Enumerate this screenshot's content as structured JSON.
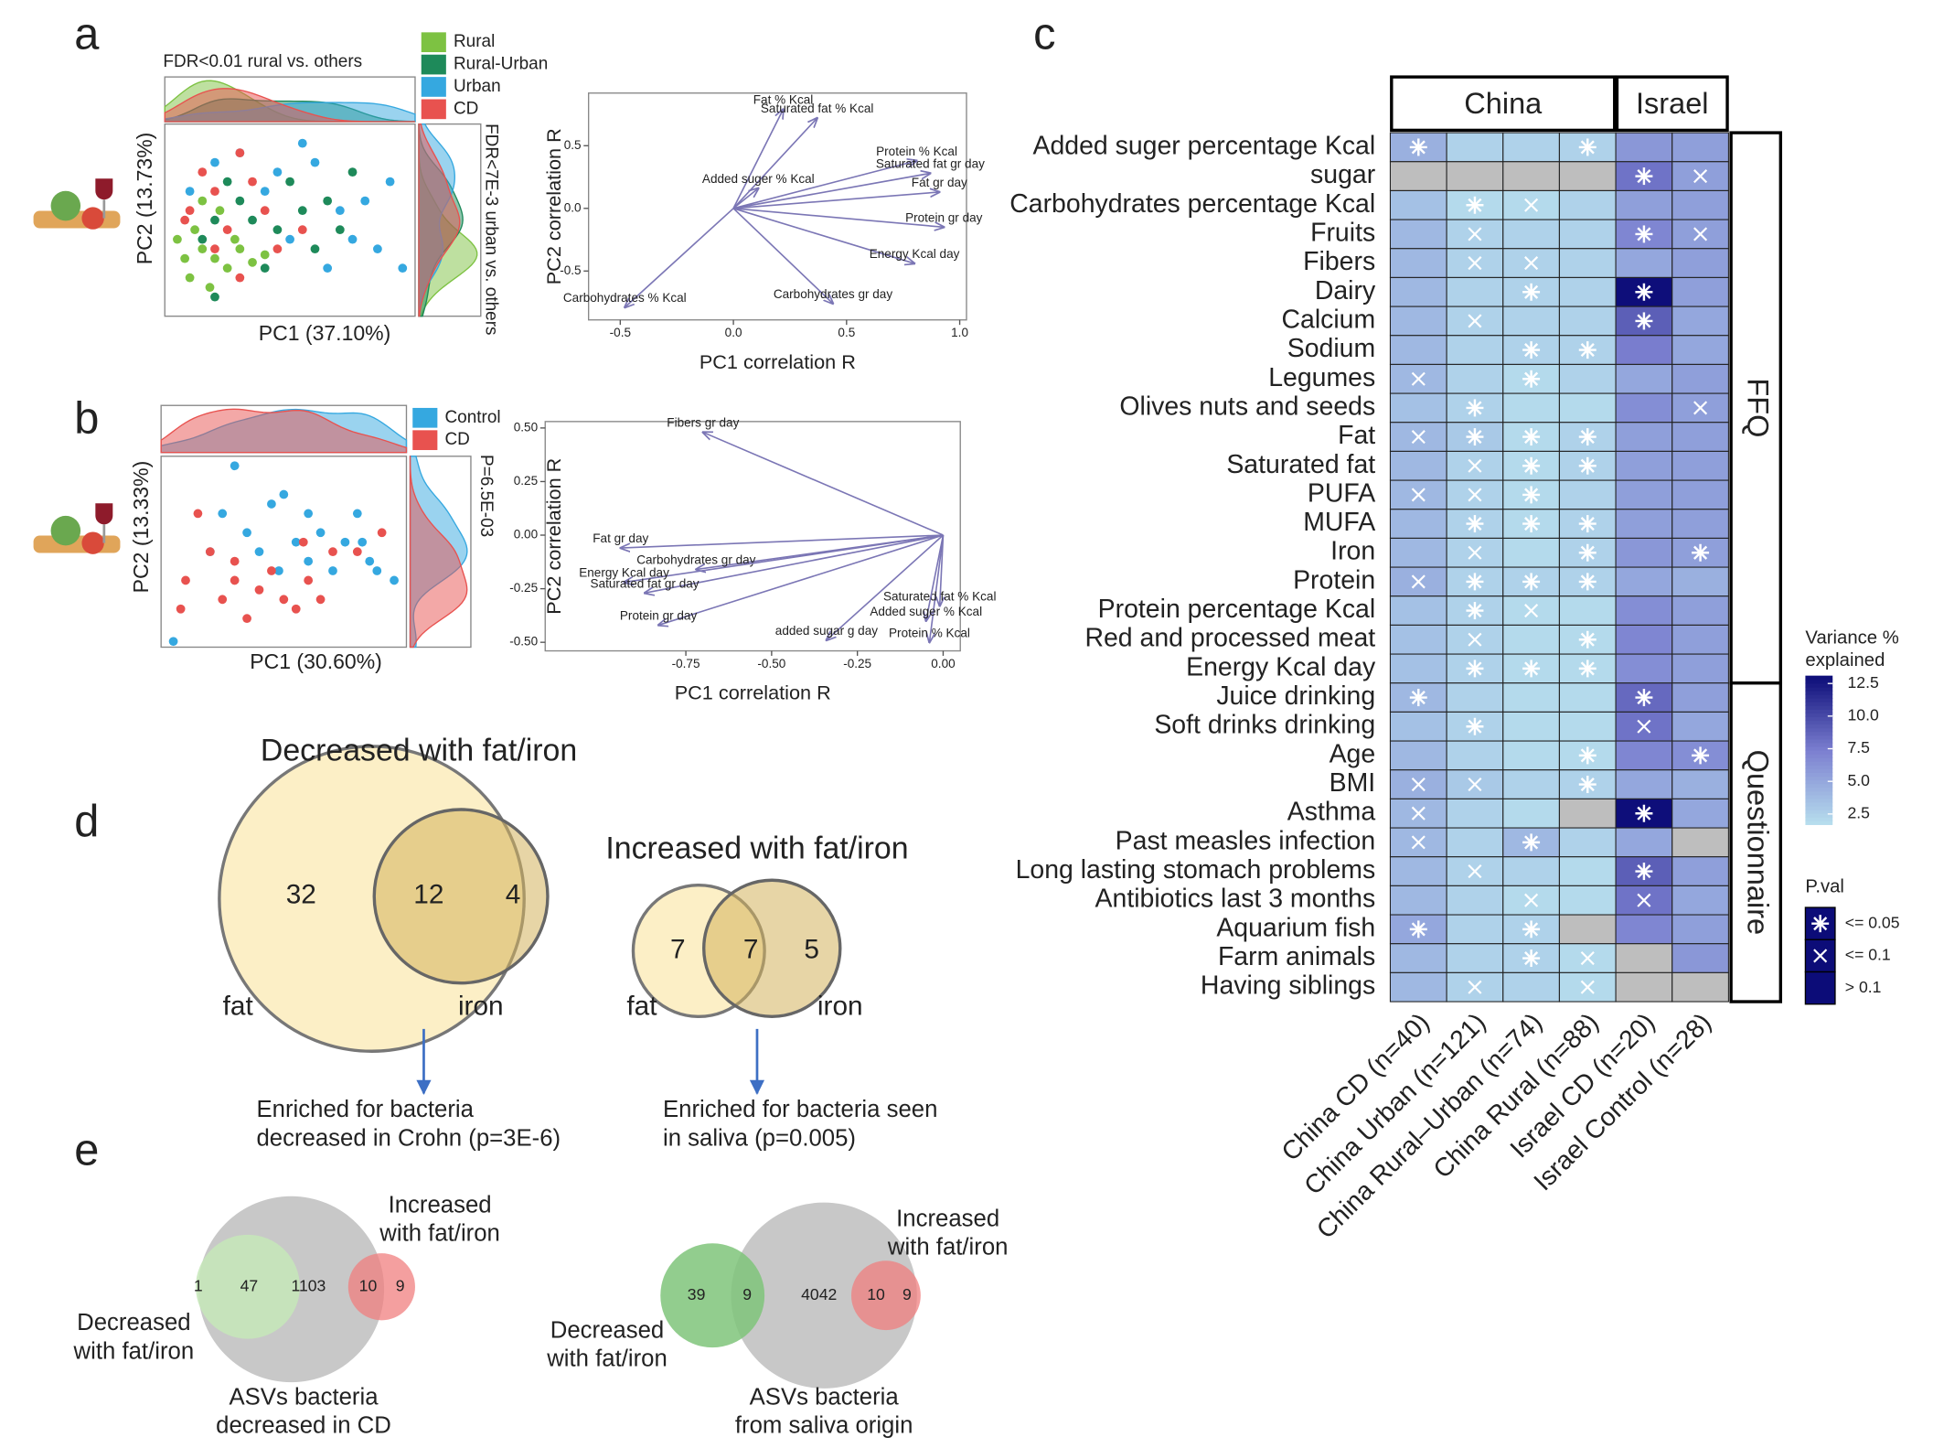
{
  "panel_labels": [
    "a",
    "b",
    "c",
    "d",
    "e"
  ],
  "chart_data": [
    {
      "type": "scatter",
      "xlabel": "PC1 (37.10%)",
      "ylabel": "PC2 (13.73%)",
      "top_annotation": "FDR<0.01 rural vs. others",
      "side_annotation": "FDR<7E-3 urban vs. others",
      "xlim": [
        0,
        1
      ],
      "ylim": [
        0,
        1
      ],
      "series": [
        {
          "name": "Rural",
          "color": "#7dc242",
          "x": [
            0.15,
            0.1,
            0.2,
            0.25,
            0.12,
            0.3,
            0.18,
            0.22,
            0.08,
            0.35,
            0.28,
            0.15,
            0.05,
            0.4
          ],
          "values": [
            0.35,
            0.2,
            0.3,
            0.25,
            0.45,
            0.35,
            0.15,
            0.55,
            0.3,
            0.28,
            0.4,
            0.6,
            0.4,
            0.32
          ]
        },
        {
          "name": "Rural-Urban",
          "color": "#1e8a5a",
          "x": [
            0.2,
            0.3,
            0.45,
            0.55,
            0.65,
            0.25,
            0.4,
            0.6,
            0.5,
            0.15,
            0.35,
            0.7,
            0.2,
            0.75
          ],
          "values": [
            0.5,
            0.6,
            0.45,
            0.55,
            0.6,
            0.7,
            0.25,
            0.35,
            0.7,
            0.4,
            0.5,
            0.45,
            0.1,
            0.75
          ]
        },
        {
          "name": "Urban",
          "color": "#35a8e0",
          "x": [
            0.3,
            0.45,
            0.6,
            0.8,
            0.85,
            0.95,
            0.7,
            0.2,
            0.55,
            0.9,
            0.4,
            0.65,
            0.75,
            0.1,
            0.5
          ],
          "values": [
            0.85,
            0.75,
            0.8,
            0.6,
            0.35,
            0.25,
            0.55,
            0.8,
            0.9,
            0.7,
            0.65,
            0.25,
            0.4,
            0.65,
            0.4
          ]
        },
        {
          "name": "CD",
          "color": "#e8524f",
          "x": [
            0.2,
            0.25,
            0.35,
            0.1,
            0.3,
            0.4,
            0.15,
            0.45,
            0.2,
            0.55,
            0.3,
            0.08
          ],
          "values": [
            0.65,
            0.45,
            0.7,
            0.55,
            0.2,
            0.55,
            0.75,
            0.35,
            0.35,
            0.45,
            0.85,
            0.5
          ]
        }
      ]
    },
    {
      "type": "biplot",
      "xlabel": "PC1 correlation R",
      "ylabel": "PC2 correlation R",
      "xlim": [
        -0.64,
        1.03
      ],
      "ylim": [
        -0.89,
        0.92
      ],
      "xticks": [
        -0.5,
        {
          "value": 0,
          "label": "0.0"
        },
        0.5,
        {
          "value": 1,
          "label": "1.0"
        }
      ],
      "yticks": [
        -0.5,
        {
          "value": 0,
          "label": "0.0"
        },
        0.5
      ],
      "vectors": [
        {
          "label": "Fat % Kcal",
          "x": 0.22,
          "y": 0.79
        },
        {
          "label": "Saturated fat % Kcal",
          "x": 0.37,
          "y": 0.72
        },
        {
          "label": "Added suger % Kcal",
          "x": 0.11,
          "y": 0.16
        },
        {
          "label": "Protein % Kcal",
          "x": 0.81,
          "y": 0.38
        },
        {
          "label": "Saturated fat gr day",
          "x": 0.87,
          "y": 0.28
        },
        {
          "label": "Fat gr day",
          "x": 0.91,
          "y": 0.13
        },
        {
          "label": "Protein gr day",
          "x": 0.93,
          "y": -0.15
        },
        {
          "label": "Energy Kcal day",
          "x": 0.8,
          "y": -0.44
        },
        {
          "label": "Carbohydrates gr day",
          "x": 0.44,
          "y": -0.76
        },
        {
          "label": "Carbohydrates % Kcal",
          "x": -0.48,
          "y": -0.79
        }
      ]
    },
    {
      "type": "scatter",
      "xlabel": "PC1 (30.60%)",
      "ylabel": "PC2 (13.33%)",
      "side_annotation": "P=6.5E-03",
      "xlim": [
        0,
        1
      ],
      "ylim": [
        0,
        1
      ],
      "series": [
        {
          "name": "Control",
          "color": "#35a8e0",
          "x": [
            0.3,
            0.45,
            0.6,
            0.5,
            0.75,
            0.85,
            0.6,
            0.4,
            0.55,
            0.82,
            0.7,
            0.95,
            0.25,
            0.2,
            0.88,
            0.65,
            0.35,
            0.05,
            0.48,
            0.8
          ],
          "values": [
            0.95,
            0.75,
            0.7,
            0.8,
            0.55,
            0.45,
            0.45,
            0.5,
            0.55,
            0.55,
            0.4,
            0.35,
            0.7,
            0.5,
            0.4,
            0.6,
            0.6,
            0.03,
            0.4,
            0.7
          ]
        },
        {
          "name": "CD",
          "color": "#e8524f",
          "x": [
            0.15,
            0.1,
            0.3,
            0.4,
            0.5,
            0.25,
            0.35,
            0.45,
            0.6,
            0.55,
            0.7,
            0.2,
            0.08,
            0.65,
            0.8,
            0.9,
            0.58,
            0.3
          ],
          "values": [
            0.7,
            0.35,
            0.35,
            0.3,
            0.25,
            0.25,
            0.15,
            0.4,
            0.35,
            0.2,
            0.5,
            0.5,
            0.2,
            0.25,
            0.5,
            0.6,
            0.55,
            0.45
          ]
        }
      ]
    },
    {
      "type": "biplot",
      "xlabel": "PC1 correlation R",
      "ylabel": "PC2 correlation R",
      "xlim": [
        -1.16,
        0.05
      ],
      "ylim": [
        -0.54,
        0.53
      ],
      "xticks": [
        -0.75,
        {
          "value": -0.5,
          "label": "-0.50"
        },
        -0.25,
        {
          "value": 0,
          "label": "0.00"
        }
      ],
      "yticks": [
        {
          "value": 0.5,
          "label": "0.50"
        },
        0.25,
        {
          "value": 0,
          "label": "0.00"
        },
        -0.25,
        {
          "value": -0.5,
          "label": "-0.50"
        }
      ],
      "vectors": [
        {
          "label": "Fibers gr day",
          "x": -0.7,
          "y": 0.48
        },
        {
          "label": "Fat gr day",
          "x": -0.94,
          "y": -0.06
        },
        {
          "label": "Carbohydrates gr day",
          "x": -0.72,
          "y": -0.16
        },
        {
          "label": "Energy Kcal day",
          "x": -0.93,
          "y": -0.22
        },
        {
          "label": "Saturated fat gr day",
          "x": -0.87,
          "y": -0.27
        },
        {
          "label": "Protein gr day",
          "x": -0.83,
          "y": -0.42
        },
        {
          "label": "added sugar g day",
          "x": -0.34,
          "y": -0.49
        },
        {
          "label": "Protein % Kcal",
          "x": -0.04,
          "y": -0.5
        },
        {
          "label": "Saturated fat % Kcal",
          "x": -0.01,
          "y": -0.33
        },
        {
          "label": "Added suger % Kcal",
          "x": -0.05,
          "y": -0.4
        }
      ]
    },
    {
      "type": "heatmap",
      "column_groups": [
        {
          "label": "China",
          "span": 4
        },
        {
          "label": "Israel",
          "span": 2
        }
      ],
      "row_groups": [
        {
          "label": "FFQ",
          "span": 19
        },
        {
          "label": "Questionnaire",
          "span": 11
        }
      ],
      "columns": [
        "China CD (n=40)",
        "China Urban (n=121)",
        "China Rural–Urban (n=74)",
        "China Rural (n=88)",
        "Israel CD (n=20)",
        "Israel Control (n=28)"
      ],
      "rows": [
        "Added suger percentage Kcal",
        "sugar",
        "Carbohydrates percentage Kcal",
        "Fruits",
        "Fibers",
        "Dairy",
        "Calcium",
        "Sodium",
        "Legumes",
        "Olives nuts and seeds",
        "Fat",
        "Saturated fat",
        "PUFA",
        "MUFA",
        "Iron",
        "Protein",
        "Protein percentage Kcal",
        "Red and processed meat",
        "Energy Kcal day",
        "Juice drinking",
        "Soft drinks drinking",
        "Age",
        "BMI",
        "Asthma",
        "Past measles infection",
        "Long lasting stomach problems",
        "Antibiotics last 3 months",
        "Aquarium fish",
        "Farm animals",
        "Having siblings"
      ],
      "values": [
        [
          4.5,
          2.5,
          2.5,
          2.5,
          6,
          5.5
        ],
        [
          null,
          null,
          null,
          null,
          8,
          5.5
        ],
        [
          3.5,
          2,
          2,
          2.5,
          5.5,
          5.5
        ],
        [
          4,
          2.5,
          2.5,
          2.5,
          7,
          5.5
        ],
        [
          4,
          2.5,
          2.5,
          2.5,
          5,
          5.5
        ],
        [
          4,
          2.5,
          2.5,
          2.5,
          13,
          5.5
        ],
        [
          4,
          2.5,
          2.5,
          2.5,
          9,
          5
        ],
        [
          4,
          2.5,
          2.5,
          2.5,
          7.5,
          5
        ],
        [
          4,
          2.5,
          2,
          2.5,
          5,
          5.5
        ],
        [
          3.5,
          2.5,
          2,
          2,
          6.5,
          5.5
        ],
        [
          4,
          3,
          2,
          2.5,
          5.5,
          5.5
        ],
        [
          4,
          2.5,
          2,
          2.5,
          5.5,
          5.5
        ],
        [
          4,
          2.5,
          2,
          2.5,
          5.5,
          5.5
        ],
        [
          4,
          2.5,
          2,
          2.5,
          5.5,
          5.5
        ],
        [
          4,
          2.5,
          2,
          2.5,
          6,
          5.5
        ],
        [
          4.5,
          2.5,
          2.5,
          2.5,
          5,
          4.5
        ],
        [
          3.5,
          2.5,
          2,
          2,
          6.5,
          5.5
        ],
        [
          3.5,
          2.5,
          2,
          2,
          7,
          5.5
        ],
        [
          3.5,
          2.5,
          2,
          2,
          6.5,
          5.5
        ],
        [
          4,
          2.5,
          2,
          2,
          8.5,
          5.5
        ],
        [
          3.5,
          2.5,
          2,
          2,
          8,
          5
        ],
        [
          4,
          2.5,
          2,
          2,
          7,
          6.5
        ],
        [
          4.5,
          3,
          2.5,
          2.5,
          5,
          4.5
        ],
        [
          4,
          2.5,
          2,
          null,
          13,
          5
        ],
        [
          4,
          2.5,
          4,
          2.5,
          5,
          null
        ],
        [
          4,
          2.5,
          2.5,
          2,
          9,
          5.5
        ],
        [
          4,
          2.5,
          2,
          2,
          8,
          5
        ],
        [
          5,
          2.5,
          2.5,
          null,
          7,
          5.5
        ],
        [
          4,
          2.5,
          2.5,
          2,
          null,
          6
        ],
        [
          4,
          2.5,
          2.5,
          2,
          null,
          null
        ]
      ],
      "significance": [
        [
          "*",
          null,
          null,
          "*",
          null,
          null
        ],
        [
          null,
          null,
          null,
          null,
          "*",
          "x"
        ],
        [
          null,
          "*",
          "x",
          null,
          null,
          null
        ],
        [
          null,
          "x",
          null,
          null,
          "*",
          "x"
        ],
        [
          null,
          "x",
          "x",
          null,
          null,
          null
        ],
        [
          null,
          null,
          "*",
          null,
          "*",
          null
        ],
        [
          null,
          "x",
          null,
          null,
          "*",
          null
        ],
        [
          null,
          null,
          "*",
          "*",
          null,
          null
        ],
        [
          "x",
          null,
          "*",
          null,
          null,
          null
        ],
        [
          null,
          "*",
          null,
          null,
          null,
          "x"
        ],
        [
          "x",
          "*",
          "*",
          "*",
          null,
          null
        ],
        [
          null,
          "x",
          "*",
          "*",
          null,
          null
        ],
        [
          "x",
          "x",
          "*",
          null,
          null,
          null
        ],
        [
          null,
          "*",
          "*",
          "*",
          null,
          null
        ],
        [
          null,
          "x",
          null,
          "*",
          null,
          "*"
        ],
        [
          "x",
          "*",
          "*",
          "*",
          null,
          null
        ],
        [
          null,
          "*",
          "x",
          null,
          null,
          null
        ],
        [
          null,
          "x",
          null,
          "*",
          null,
          null
        ],
        [
          null,
          "*",
          "*",
          "*",
          null,
          null
        ],
        [
          "*",
          null,
          null,
          null,
          "*",
          null
        ],
        [
          null,
          "*",
          null,
          null,
          "x",
          null
        ],
        [
          null,
          null,
          null,
          "*",
          null,
          "*"
        ],
        [
          "x",
          "x",
          null,
          "*",
          null,
          null
        ],
        [
          "x",
          null,
          null,
          null,
          "*",
          null
        ],
        [
          "x",
          null,
          "*",
          null,
          null,
          null
        ],
        [
          null,
          "x",
          null,
          null,
          "*",
          null
        ],
        [
          null,
          null,
          "x",
          null,
          "x",
          null
        ],
        [
          "*",
          null,
          "*",
          null,
          null,
          null
        ],
        [
          null,
          null,
          "*",
          "x",
          null,
          null
        ],
        [
          null,
          "x",
          null,
          "x",
          null,
          null
        ]
      ],
      "colors": [
        "#b7dfee",
        "#7b7fd0",
        "#0c0c78"
      ],
      "na_color": "#bebebe",
      "clim": [
        1.7,
        13.1
      ],
      "colorbar_title": [
        "Variance %",
        "explained"
      ],
      "colorbar_ticks": [
        2.5,
        {
          "value": 5,
          "label": "5.0"
        },
        7.5,
        {
          "value": 10,
          "label": "10.0"
        },
        12.5
      ],
      "pval_title": "P.val",
      "pval_legend": [
        {
          "symbol": "*",
          "label": "<= 0.05"
        },
        {
          "symbol": "x",
          "label": "<= 0.1"
        },
        {
          "symbol": null,
          "label": "> 0.1"
        }
      ]
    }
  ],
  "panel_d": {
    "venns": [
      {
        "title": "Decreased with fat/iron",
        "title_color": "#3aa935",
        "sets": [
          "fat",
          "iron"
        ],
        "counts": [
          32,
          12,
          4
        ],
        "note": [
          "Enriched for bacteria",
          "decreased in Crohn (p=3E-6)"
        ]
      },
      {
        "title": "Increased with fat/iron",
        "title_color": "#ee8c8c",
        "sets": [
          "fat",
          "iron"
        ],
        "counts": [
          7,
          7,
          5
        ],
        "note": [
          "Enriched for bacteria seen",
          "in saliva (p=0.005)"
        ]
      }
    ]
  },
  "panel_e": {
    "venns": [
      {
        "regions": [
          1,
          47,
          1103,
          10,
          9
        ],
        "big_label": [
          "ASVs bacteria",
          "decreased in CD"
        ],
        "decreased_label": [
          "Decreased",
          "with fat/iron"
        ],
        "increased_label": [
          "Increased",
          "with fat/iron"
        ]
      },
      {
        "regions": [
          39,
          9,
          4042,
          10,
          9
        ],
        "big_label": [
          "ASVs bacteria",
          "from saliva origin"
        ],
        "decreased_label": [
          "Decreased",
          "with fat/iron"
        ],
        "increased_label": [
          "Increased",
          "with fat/iron"
        ]
      }
    ]
  }
}
